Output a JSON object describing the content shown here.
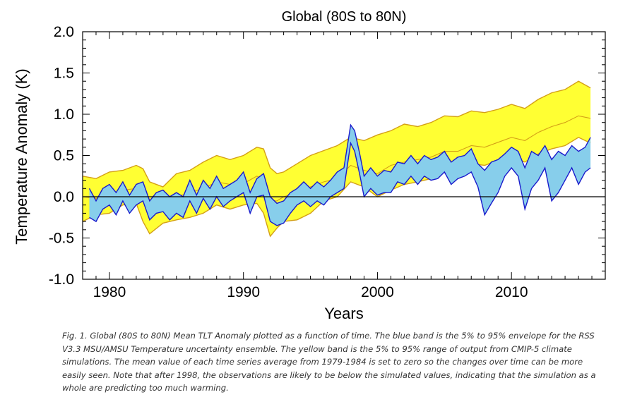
{
  "chart_data": {
    "type": "area",
    "title": "Global (80S to 80N)",
    "xlabel": "Years",
    "ylabel": "Temperature Anomaly (K)",
    "xlim": [
      1978,
      2017
    ],
    "ylim": [
      -1.0,
      2.0
    ],
    "x_ticks": [
      1980,
      1990,
      2000,
      2010
    ],
    "y_ticks": [
      -1.0,
      -0.5,
      0.0,
      0.5,
      1.0,
      1.5,
      2.0
    ],
    "x_tick_labels": [
      "1980",
      "1990",
      "2000",
      "2010"
    ],
    "y_tick_labels": [
      "-1.0",
      "-0.5",
      "0.0",
      "0.5",
      "1.0",
      "1.5",
      "2.0"
    ],
    "zero_line": 0.0,
    "grid": false,
    "series": [
      {
        "color": "#ffff33",
        "edge_color": "#d4a017",
        "x": [
          1978.0,
          1979.0,
          1980.0,
          1981.0,
          1982.0,
          1982.5,
          1983.0,
          1984.0,
          1985.0,
          1986.0,
          1987.0,
          1988.0,
          1989.0,
          1990.0,
          1991.0,
          1991.5,
          1992.0,
          1992.5,
          1993.0,
          1994.0,
          1995.0,
          1996.0,
          1997.0,
          1998.0,
          1999.0,
          2000.0,
          2001.0,
          2002.0,
          2003.0,
          2004.0,
          2005.0,
          2006.0,
          2007.0,
          2008.0,
          2009.0,
          2010.0,
          2011.0,
          2012.0,
          2013.0,
          2014.0,
          2015.0,
          2015.9
        ],
        "upper": [
          0.25,
          0.22,
          0.3,
          0.32,
          0.38,
          0.34,
          0.18,
          0.12,
          0.28,
          0.32,
          0.42,
          0.5,
          0.45,
          0.5,
          0.6,
          0.58,
          0.35,
          0.28,
          0.3,
          0.4,
          0.5,
          0.56,
          0.62,
          0.72,
          0.68,
          0.75,
          0.8,
          0.88,
          0.85,
          0.9,
          0.98,
          0.97,
          1.04,
          1.02,
          1.06,
          1.12,
          1.07,
          1.18,
          1.26,
          1.3,
          1.4,
          1.32
        ],
        "lower": [
          -0.3,
          -0.22,
          -0.2,
          -0.1,
          -0.08,
          -0.3,
          -0.45,
          -0.32,
          -0.28,
          -0.25,
          -0.2,
          -0.1,
          -0.15,
          -0.1,
          -0.08,
          -0.2,
          -0.48,
          -0.38,
          -0.3,
          -0.28,
          -0.2,
          -0.05,
          0.0,
          0.18,
          0.12,
          0.0,
          0.08,
          0.15,
          0.18,
          0.22,
          0.3,
          0.3,
          0.4,
          0.38,
          0.44,
          0.48,
          0.42,
          0.52,
          0.58,
          0.62,
          0.72,
          0.65
        ],
        "mean": [
          0.0,
          -0.02,
          0.02,
          0.08,
          0.1,
          0.0,
          -0.12,
          -0.12,
          0.0,
          0.05,
          0.1,
          0.18,
          0.15,
          0.16,
          0.25,
          0.2,
          -0.05,
          -0.05,
          0.0,
          0.05,
          0.12,
          0.18,
          0.22,
          0.38,
          0.32,
          0.28,
          0.38,
          0.42,
          0.45,
          0.48,
          0.55,
          0.55,
          0.62,
          0.6,
          0.66,
          0.72,
          0.68,
          0.78,
          0.85,
          0.9,
          0.98,
          0.95
        ]
      },
      {
        "color": "#87ceeb",
        "edge_color": "#1a1acc",
        "x": [
          1978.5,
          1979.0,
          1979.5,
          1980.0,
          1980.5,
          1981.0,
          1981.5,
          1982.0,
          1982.5,
          1983.0,
          1983.5,
          1984.0,
          1984.5,
          1985.0,
          1985.5,
          1986.0,
          1986.5,
          1987.0,
          1987.5,
          1988.0,
          1988.5,
          1989.0,
          1989.5,
          1990.0,
          1990.5,
          1991.0,
          1991.5,
          1992.0,
          1992.5,
          1993.0,
          1993.5,
          1994.0,
          1994.5,
          1995.0,
          1995.5,
          1996.0,
          1996.5,
          1997.0,
          1997.5,
          1998.0,
          1998.3,
          1998.7,
          1999.0,
          1999.5,
          2000.0,
          2000.5,
          2001.0,
          2001.5,
          2002.0,
          2002.5,
          2003.0,
          2003.5,
          2004.0,
          2004.5,
          2005.0,
          2005.5,
          2006.0,
          2006.5,
          2007.0,
          2007.5,
          2008.0,
          2008.5,
          2009.0,
          2009.5,
          2010.0,
          2010.5,
          2011.0,
          2011.5,
          2012.0,
          2012.5,
          2013.0,
          2013.5,
          2014.0,
          2014.5,
          2015.0,
          2015.5,
          2015.9
        ],
        "upper": [
          0.1,
          -0.05,
          0.1,
          0.15,
          0.05,
          0.18,
          0.02,
          0.15,
          0.18,
          -0.05,
          0.05,
          0.08,
          0.0,
          0.05,
          0.0,
          0.2,
          0.02,
          0.2,
          0.1,
          0.25,
          0.1,
          0.15,
          0.2,
          0.3,
          0.05,
          0.22,
          0.28,
          0.0,
          -0.08,
          -0.05,
          0.05,
          0.1,
          0.18,
          0.1,
          0.18,
          0.12,
          0.2,
          0.3,
          0.35,
          0.87,
          0.8,
          0.5,
          0.25,
          0.35,
          0.25,
          0.32,
          0.3,
          0.42,
          0.4,
          0.5,
          0.4,
          0.5,
          0.45,
          0.48,
          0.55,
          0.42,
          0.48,
          0.5,
          0.58,
          0.4,
          0.32,
          0.42,
          0.45,
          0.52,
          0.6,
          0.55,
          0.35,
          0.55,
          0.5,
          0.62,
          0.45,
          0.55,
          0.5,
          0.62,
          0.55,
          0.6,
          0.72
        ],
        "lower": [
          -0.25,
          -0.3,
          -0.15,
          -0.1,
          -0.22,
          -0.05,
          -0.2,
          -0.1,
          -0.05,
          -0.28,
          -0.2,
          -0.18,
          -0.28,
          -0.2,
          -0.25,
          -0.05,
          -0.2,
          -0.02,
          -0.15,
          0.0,
          -0.12,
          -0.05,
          0.0,
          0.05,
          -0.2,
          0.0,
          0.02,
          -0.3,
          -0.35,
          -0.32,
          -0.2,
          -0.1,
          -0.05,
          -0.12,
          -0.05,
          -0.1,
          0.0,
          0.05,
          0.1,
          0.65,
          0.55,
          0.25,
          0.0,
          0.1,
          0.02,
          0.05,
          0.05,
          0.18,
          0.15,
          0.25,
          0.15,
          0.25,
          0.2,
          0.22,
          0.3,
          0.15,
          0.22,
          0.25,
          0.3,
          0.12,
          -0.22,
          -0.08,
          0.05,
          0.25,
          0.35,
          0.25,
          -0.15,
          0.1,
          0.2,
          0.35,
          -0.05,
          0.05,
          0.2,
          0.35,
          0.15,
          0.3,
          0.35
        ]
      }
    ]
  },
  "caption": "Fig. 1.  Global (80S to 80N) Mean TLT Anomaly plotted as a function of time.  The blue band is the 5% to 95% envelope for the RSS V3.3 MSU/AMSU Temperature uncertainty ensemble.  The yellow band is the 5% to 95% range of output from CMIP-5 climate simulations.  The mean value of each time series average from 1979-1984 is set to zero so the changes over time can be more easily seen.  Note that after 1998, the observations are likely to be below the simulated values, indicating that the simulation as a whole are predicting too much warming."
}
